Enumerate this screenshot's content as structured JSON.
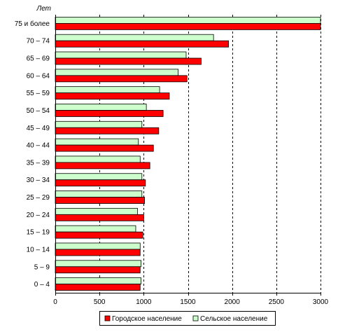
{
  "chart_data": {
    "type": "bar",
    "orientation": "horizontal",
    "ylabel": "Лет",
    "xlabel": "",
    "xlim": [
      0,
      3000
    ],
    "xticks": [
      0,
      500,
      1000,
      1500,
      2000,
      2500,
      3000
    ],
    "grid": "vertical-dashed",
    "legend_position": "bottom",
    "categories": [
      "75 и более",
      "70 – 74",
      "65 – 69",
      "60 – 64",
      "55 – 59",
      "50 – 54",
      "45 – 49",
      "40 – 44",
      "35 – 39",
      "30 – 34",
      "25 – 29",
      "20 – 24",
      "15 – 19",
      "10 – 14",
      "5 – 9",
      "0 – 4"
    ],
    "series": [
      {
        "name": "Городское население",
        "color": "#ff0000",
        "values": [
          3000,
          1960,
          1650,
          1490,
          1290,
          1220,
          1170,
          1110,
          1070,
          1020,
          1010,
          1000,
          990,
          960,
          960,
          960
        ]
      },
      {
        "name": "Сельское население",
        "color": "#ccffcc",
        "values": [
          3000,
          1790,
          1480,
          1390,
          1180,
          1030,
          980,
          940,
          960,
          980,
          980,
          930,
          910,
          960,
          970,
          970
        ]
      }
    ]
  }
}
